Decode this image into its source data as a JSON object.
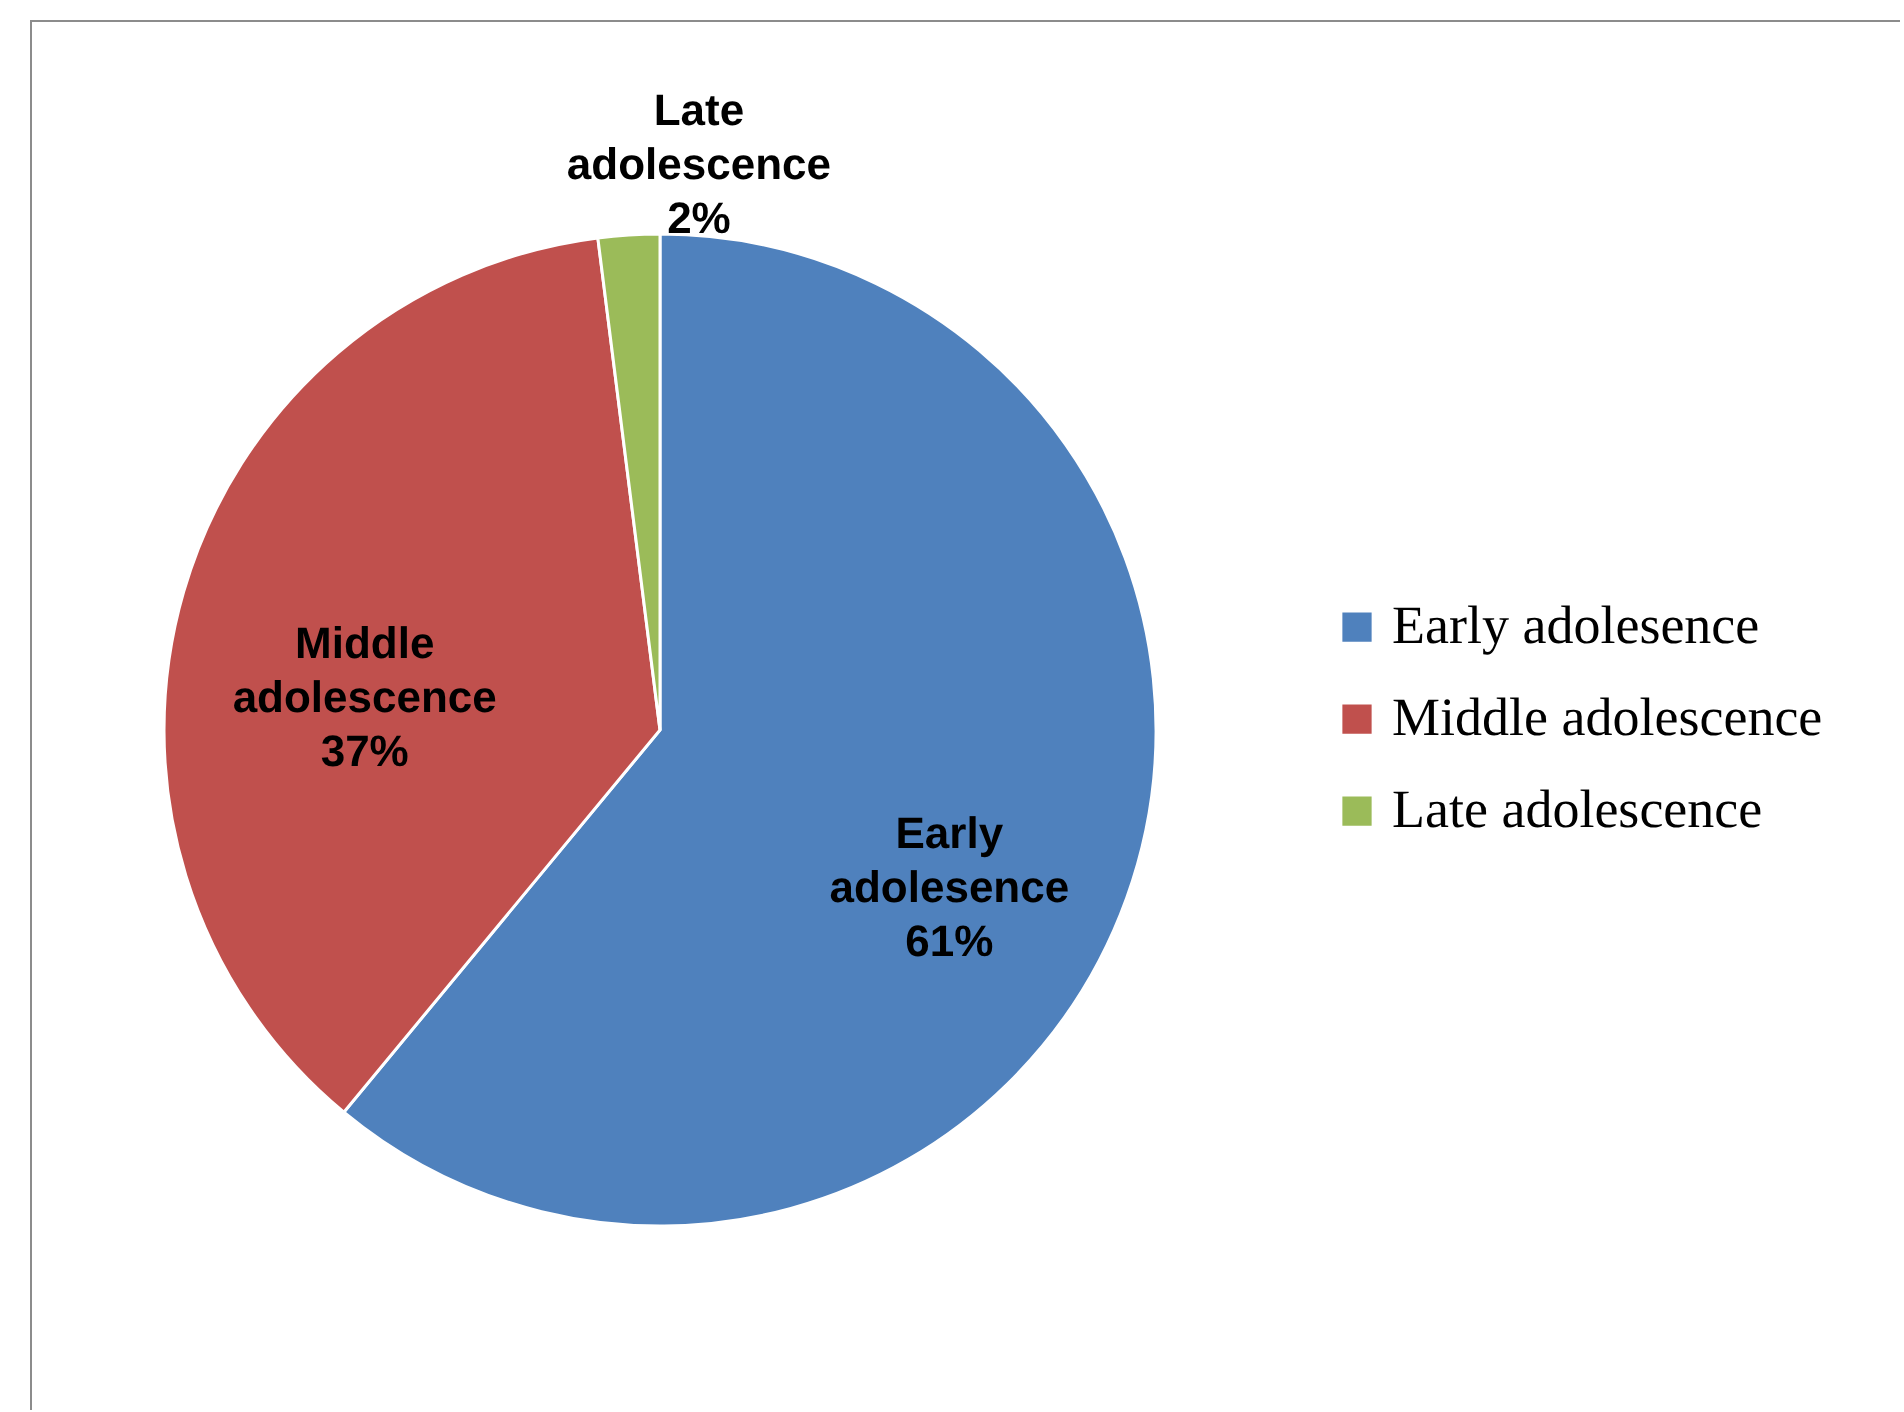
{
  "chart_data": {
    "type": "pie",
    "categories": [
      "Early adolesence",
      "Middle adolescence",
      "Late adolescence"
    ],
    "values": [
      61,
      37,
      2
    ],
    "colors": [
      "#4f81bd",
      "#c0504d",
      "#9bbb59"
    ],
    "value_labels": [
      "61%",
      "37%",
      "2%"
    ],
    "legend": "right"
  }
}
